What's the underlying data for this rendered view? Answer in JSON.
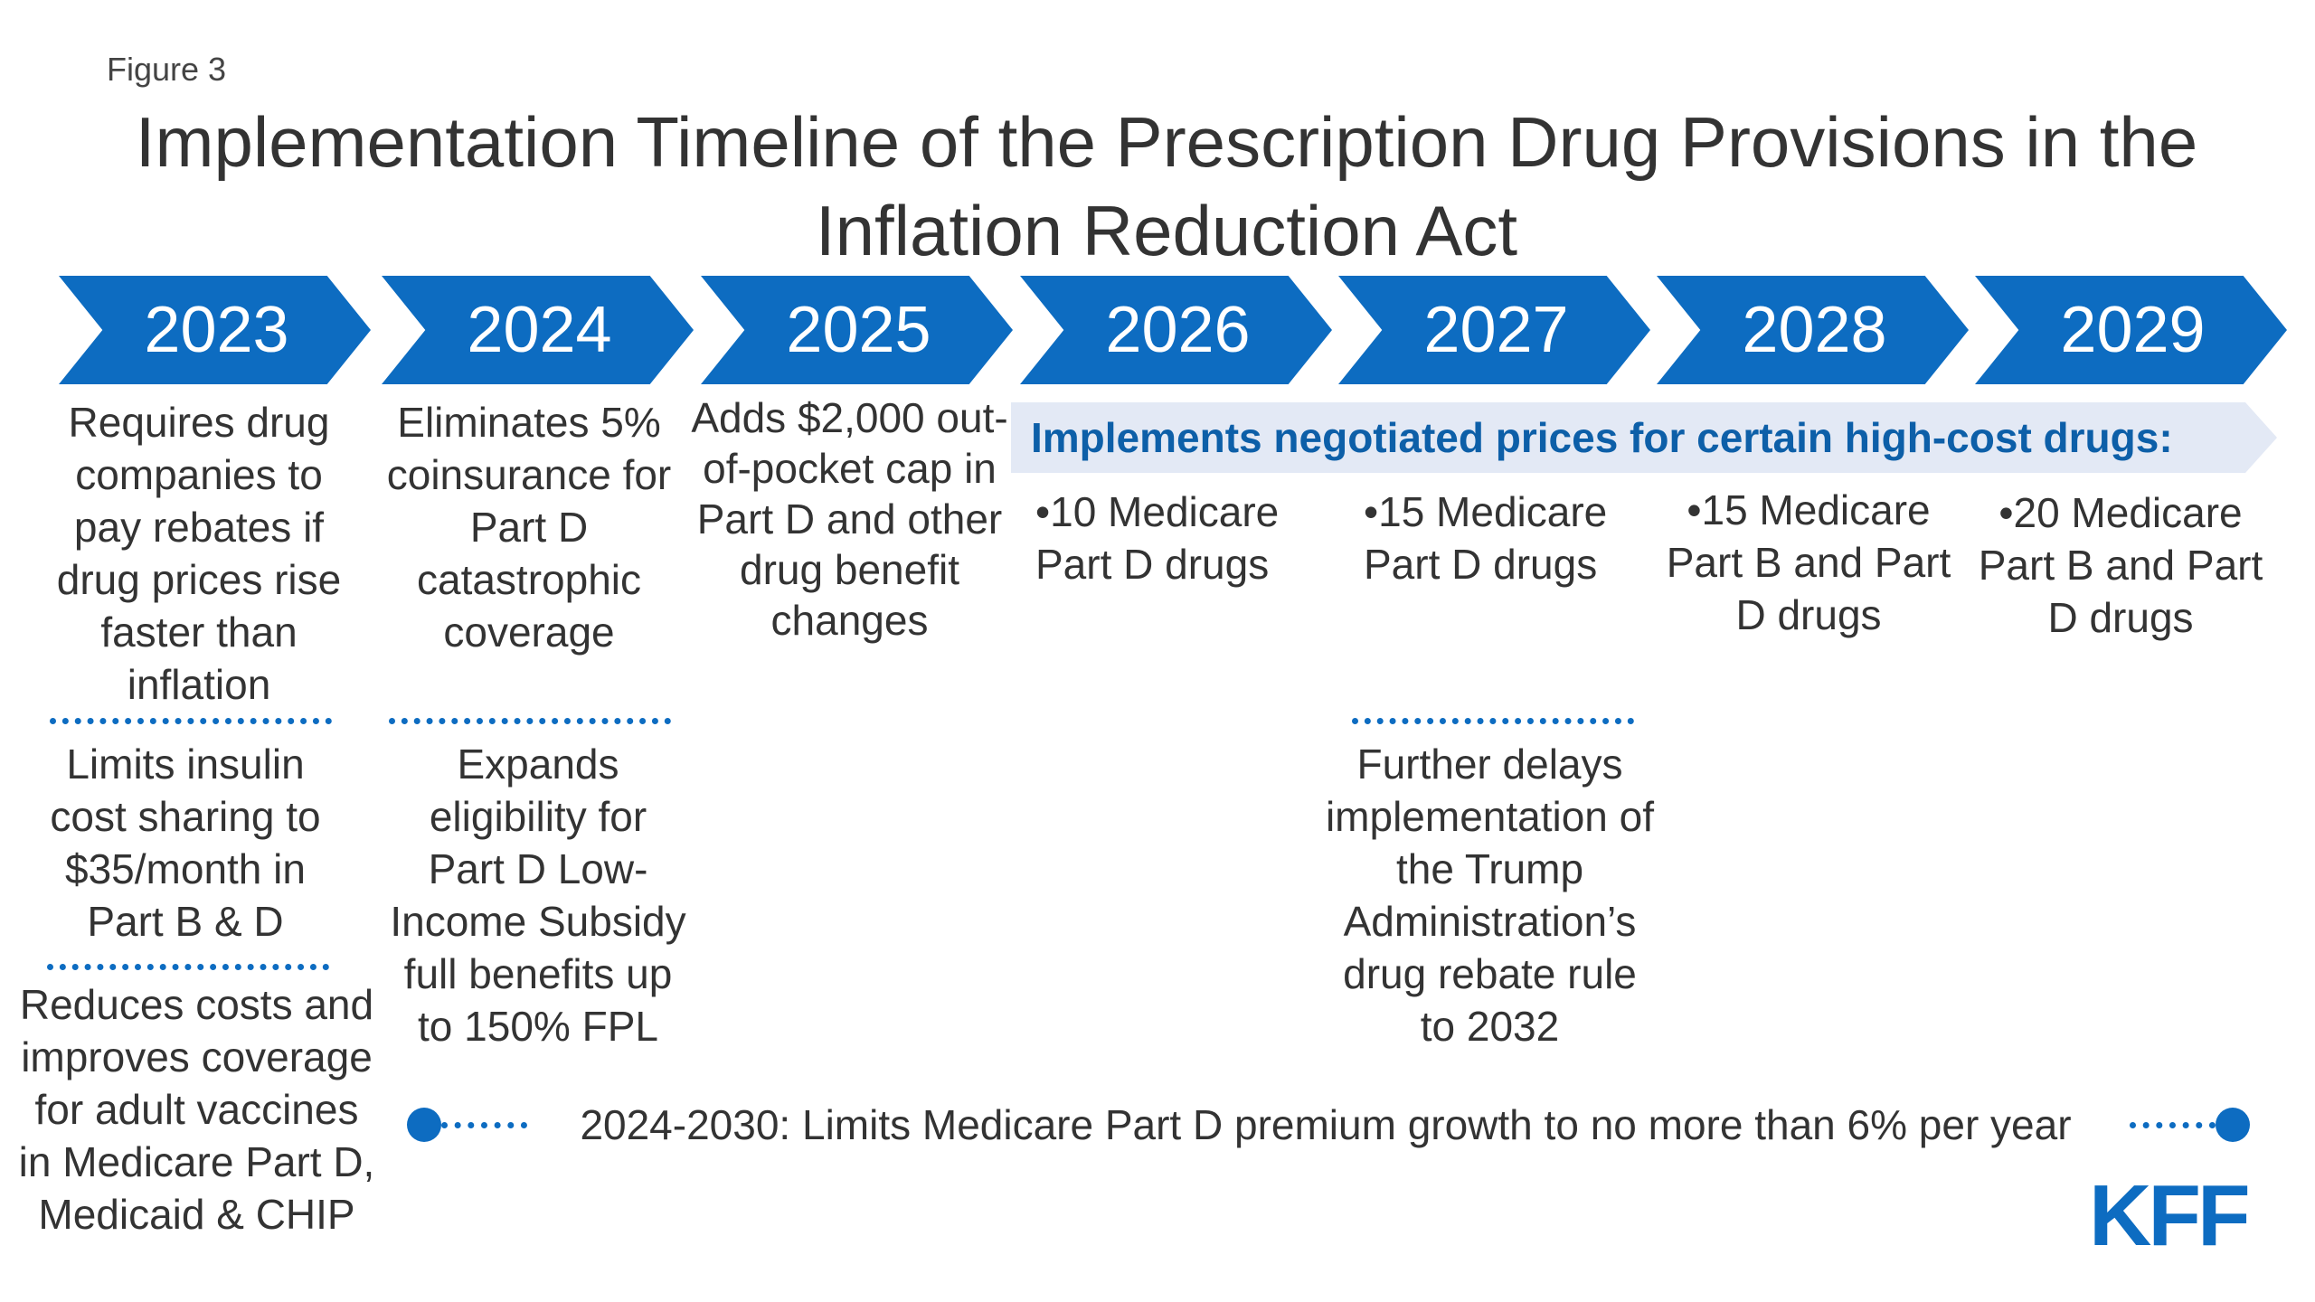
{
  "figure_label": "Figure 3",
  "title": "Implementation Timeline of the Prescription Drug Provisions in the Inflation Reduction Act",
  "years": [
    "2023",
    "2024",
    "2025",
    "2026",
    "2027",
    "2028",
    "2029"
  ],
  "col2023": {
    "block1": "Requires drug companies to pay rebates if drug prices rise faster than inflation",
    "block2": "Limits insulin cost sharing to $35/month in Part B & D",
    "block3": "Reduces costs and improves coverage for adult vaccines in Medicare Part D, Medicaid & CHIP"
  },
  "col2024": {
    "block1": "Eliminates 5% coinsurance for Part D catastrophic coverage",
    "block2": "Expands eligibility for Part D Low-Income Subsidy full benefits up to 150% FPL"
  },
  "col2025": {
    "block1": "Adds $2,000 out-of-pocket cap in Part D and other drug benefit changes"
  },
  "negotiation": {
    "banner": "Implements negotiated prices for certain high-cost drugs:",
    "y2026": "•10 Medicare Part D drugs",
    "y2027": "•15 Medicare Part D drugs",
    "y2028": "•15 Medicare Part B and Part D drugs",
    "y2029": "•20 Medicare Part B and Part D drugs"
  },
  "col2027": {
    "block2": "Further delays implementation of the Trump Administration’s drug rebate rule to 2032"
  },
  "premium_bar": "2024-2030: Limits Medicare Part D premium growth to no more than 6% per year",
  "logo": "KFF",
  "colors": {
    "primary": "#0d6cc1",
    "banner_bg": "#e3e9f5",
    "banner_text": "#0d5fa8"
  }
}
